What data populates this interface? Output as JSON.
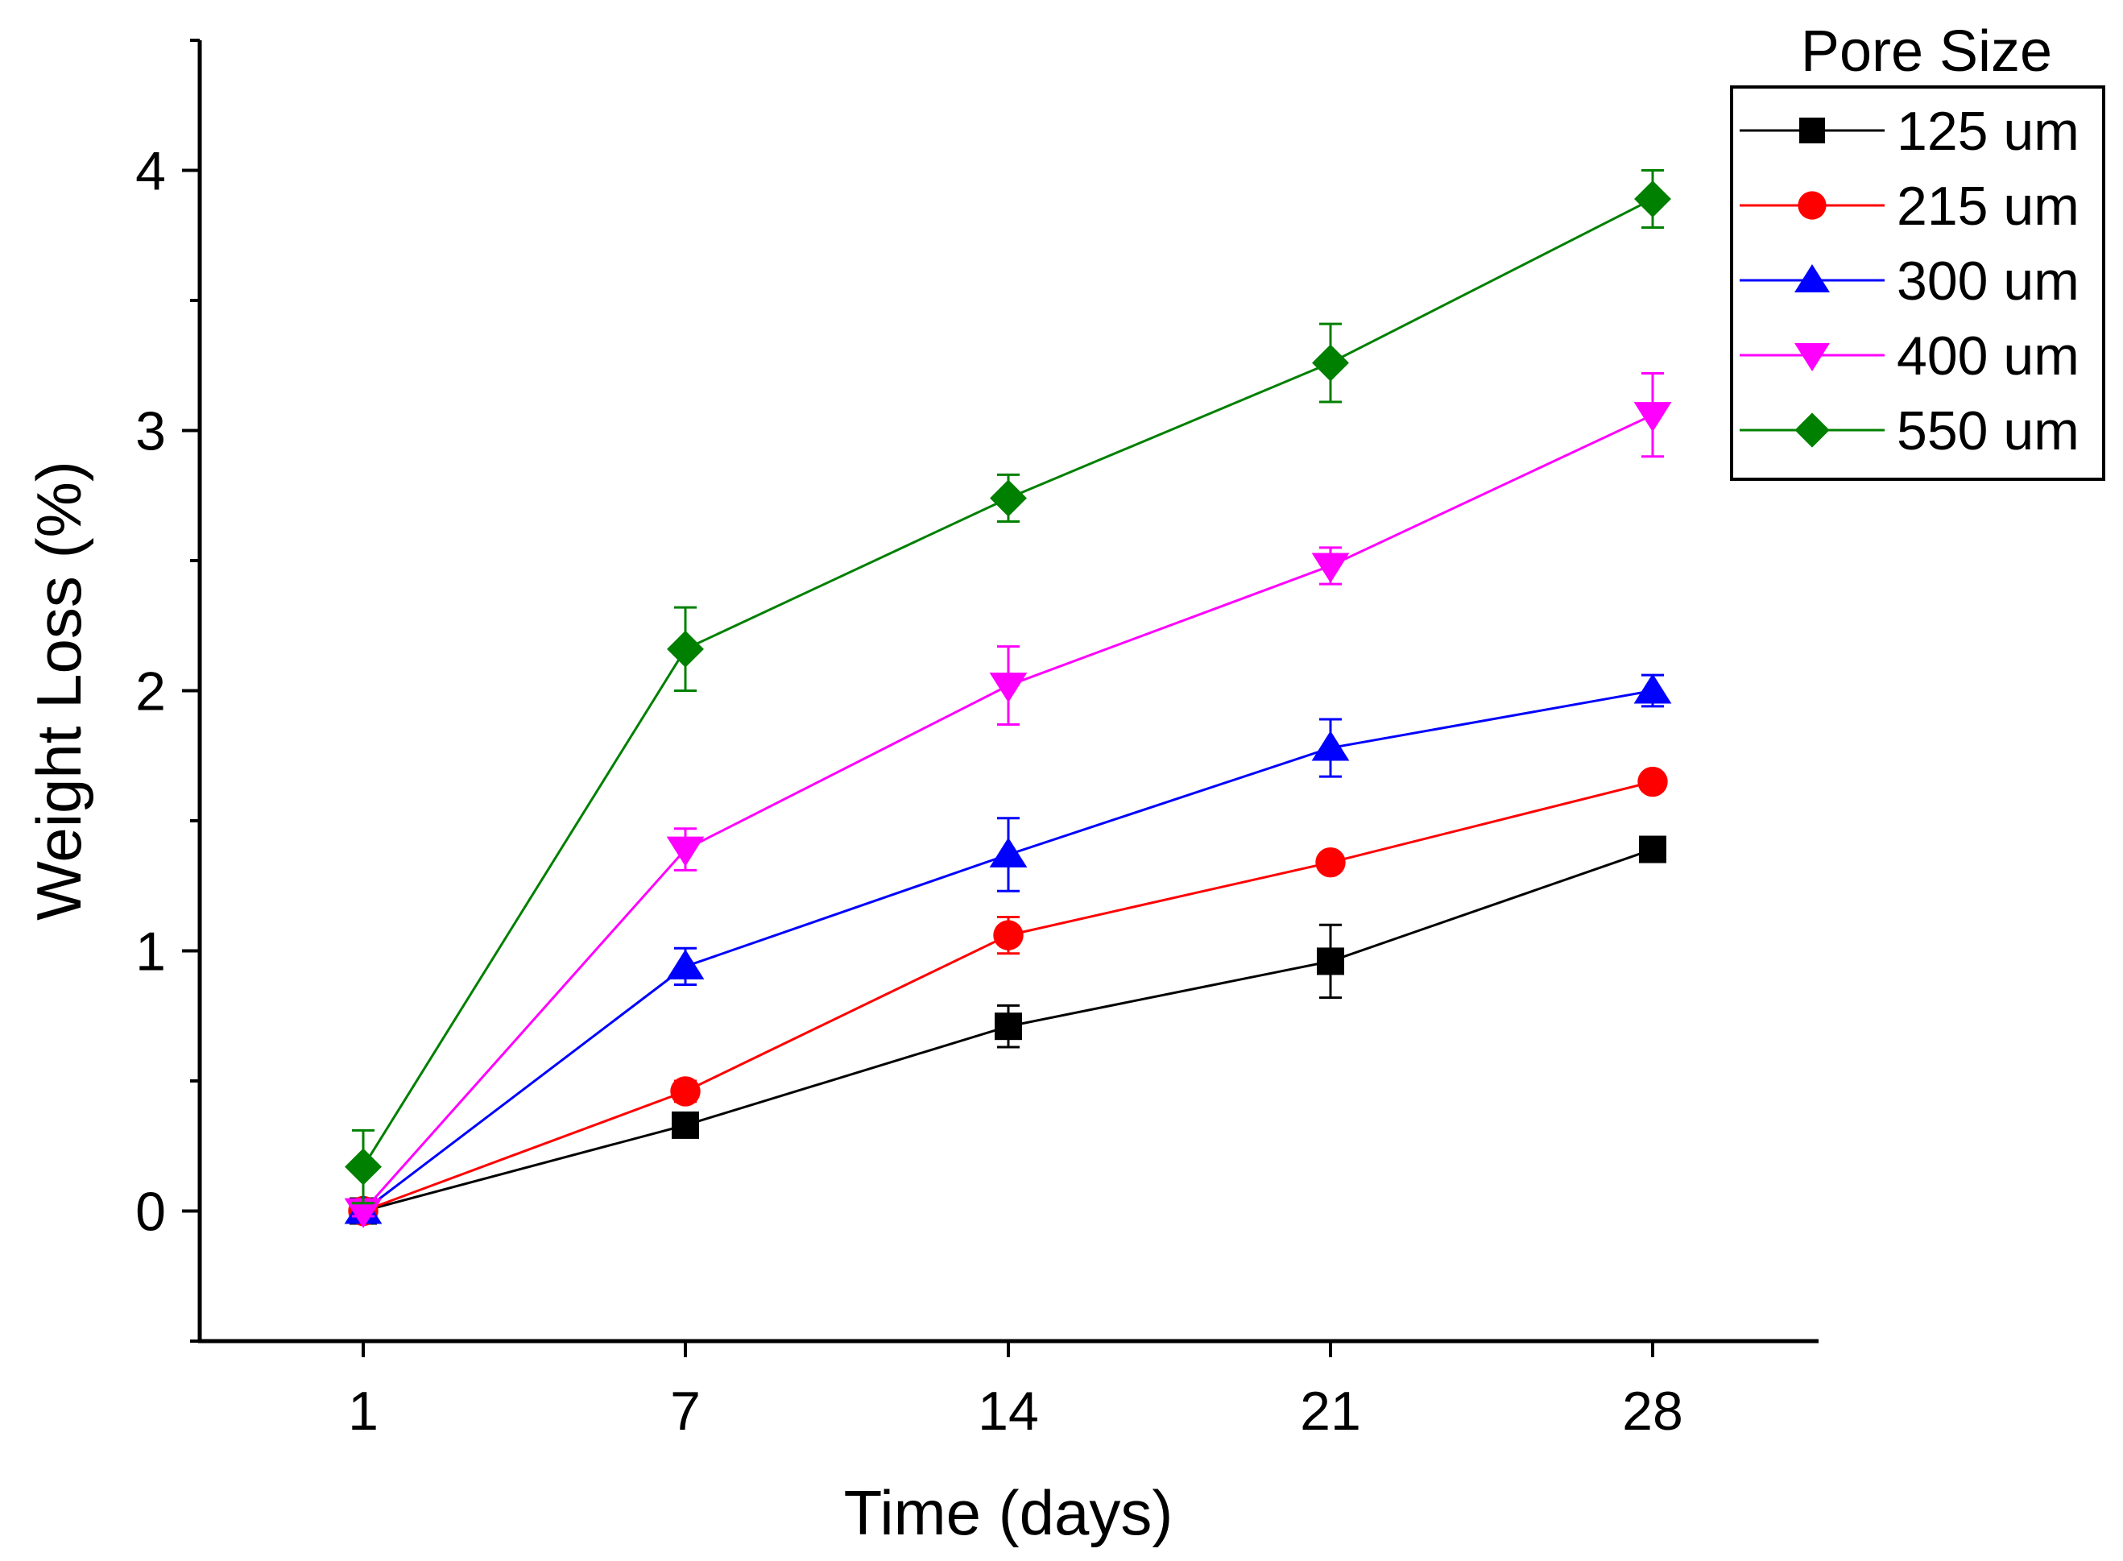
{
  "chart_data": {
    "type": "line",
    "title": "",
    "xlabel": "Time (days)",
    "ylabel": "Weight Loss (%)",
    "categories": [
      "1",
      "7",
      "14",
      "21",
      "28"
    ],
    "x": [
      1,
      7,
      14,
      21,
      28
    ],
    "ylim": [
      -0.5,
      4.5
    ],
    "yticks": [
      0,
      1,
      2,
      3,
      4
    ],
    "yticks_labels": [
      "0",
      "1",
      "2",
      "3",
      "4"
    ],
    "grid": false,
    "legend": {
      "title": "Pore Size",
      "placement": "top-right"
    },
    "series": [
      {
        "name": "125 um",
        "color": "#000000",
        "marker": "square",
        "values": [
          0.0,
          0.33,
          0.71,
          0.96,
          1.39
        ],
        "errors": [
          0.02,
          0.02,
          0.08,
          0.14,
          0.02
        ]
      },
      {
        "name": "215 um",
        "color": "#ff0000",
        "marker": "circle",
        "values": [
          0.0,
          0.46,
          1.06,
          1.34,
          1.65
        ],
        "errors": [
          0.02,
          0.04,
          0.07,
          0.03,
          0.03
        ]
      },
      {
        "name": "300 um",
        "color": "#0000ff",
        "marker": "triangle-up",
        "values": [
          0.0,
          0.94,
          1.37,
          1.78,
          2.0
        ],
        "errors": [
          0.02,
          0.07,
          0.14,
          0.11,
          0.06
        ]
      },
      {
        "name": "400 um",
        "color": "#ff00ff",
        "marker": "triangle-down",
        "values": [
          0.0,
          1.39,
          2.02,
          2.48,
          3.06
        ],
        "errors": [
          0.02,
          0.08,
          0.15,
          0.07,
          0.16
        ]
      },
      {
        "name": "550 um",
        "color": "#008000",
        "marker": "diamond",
        "values": [
          0.17,
          2.16,
          2.74,
          3.26,
          3.89
        ],
        "errors": [
          0.14,
          0.16,
          0.09,
          0.15,
          0.11
        ]
      }
    ]
  }
}
